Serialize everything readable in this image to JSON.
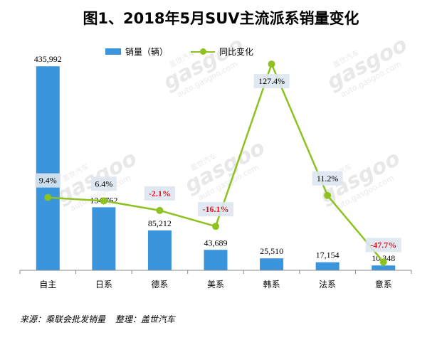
{
  "chart_data": {
    "type": "bar",
    "title": "图1、2018年5月SUV主流派系销量变化",
    "categories": [
      "自主",
      "日系",
      "德系",
      "美系",
      "韩系",
      "法系",
      "意系"
    ],
    "series": [
      {
        "name": "销量（辆）",
        "type": "bar",
        "values": [
          435992,
          134762,
          85212,
          43689,
          25510,
          17154,
          10348
        ],
        "labels": [
          "435,992",
          "134,762",
          "85,212",
          "43,689",
          "25,510",
          "17,154",
          "10,348"
        ],
        "color": "#3b95dd"
      },
      {
        "name": "同比变化",
        "type": "line",
        "values": [
          9.4,
          6.4,
          -2.1,
          -16.1,
          127.4,
          11.2,
          -47.7
        ],
        "labels": [
          "9.4%",
          "6.4%",
          "-2.1%",
          "-16.1%",
          "127.4%",
          "11.2%",
          "-47.7%"
        ],
        "color": "#8dc21f",
        "negative_label_color": "#e8141b"
      }
    ],
    "bar_ylim": [
      0,
      450000
    ],
    "line_ylim": [
      -55,
      135
    ],
    "grid": false,
    "legend_position": "top"
  },
  "footer": {
    "source": "来源：乘联会批发销量",
    "editor": "整理：盖世汽车"
  },
  "watermark": {
    "brand": "盖世汽车",
    "logo": "gasgoo",
    "url": "auto.gasgoo.com"
  }
}
